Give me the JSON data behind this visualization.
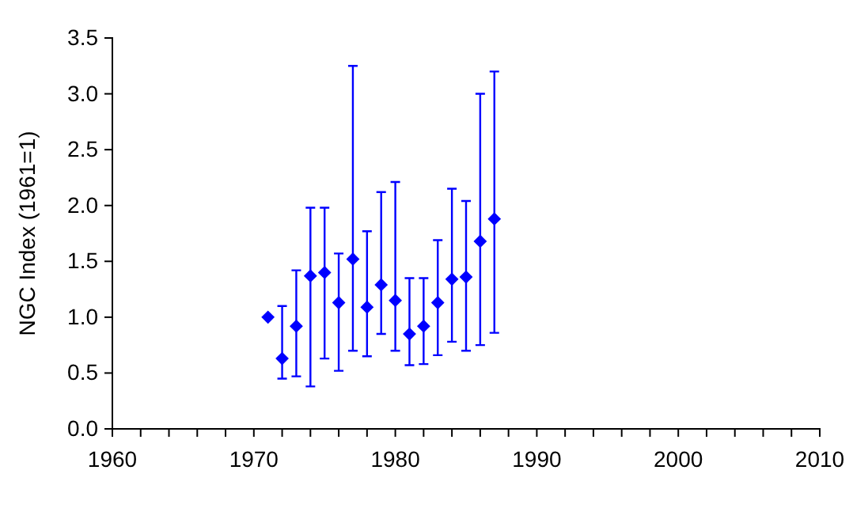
{
  "chart_data": {
    "type": "scatter",
    "ylabel": "NGC Index (1961=1)",
    "marker": "diamond",
    "x": [
      1971,
      1972,
      1973,
      1974,
      1975,
      1976,
      1977,
      1978,
      1979,
      1980,
      1981,
      1982,
      1983,
      1984,
      1985,
      1986,
      1987
    ],
    "series": [
      {
        "color": "#0000ff",
        "values": [
          1.0,
          0.63,
          0.92,
          1.37,
          1.4,
          1.13,
          1.52,
          1.09,
          1.29,
          1.15,
          0.85,
          0.92,
          1.13,
          1.34,
          1.36,
          1.68,
          1.88
        ],
        "errors": [
          null,
          [
            0.45,
            1.1
          ],
          [
            0.47,
            1.42
          ],
          [
            0.38,
            1.98
          ],
          [
            0.63,
            1.98
          ],
          [
            0.52,
            1.57
          ],
          [
            0.7,
            3.25
          ],
          [
            0.65,
            1.77
          ],
          [
            0.85,
            2.12
          ],
          [
            0.7,
            2.21
          ],
          [
            0.57,
            1.35
          ],
          [
            0.58,
            1.35
          ],
          [
            0.66,
            1.69
          ],
          [
            0.78,
            2.15
          ],
          [
            0.7,
            2.04
          ],
          [
            0.75,
            3.0
          ],
          [
            0.86,
            3.2
          ]
        ]
      }
    ],
    "xlim": [
      1960,
      2010
    ],
    "xticks": [
      1960,
      {
        "value": 1962,
        "label": null
      },
      {
        "value": 1964,
        "label": null
      },
      {
        "value": 1966,
        "label": null
      },
      {
        "value": 1968,
        "label": null
      },
      1970,
      {
        "value": 1972,
        "label": null
      },
      {
        "value": 1974,
        "label": null
      },
      {
        "value": 1976,
        "label": null
      },
      {
        "value": 1978,
        "label": null
      },
      1980,
      {
        "value": 1982,
        "label": null
      },
      {
        "value": 1984,
        "label": null
      },
      {
        "value": 1986,
        "label": null
      },
      {
        "value": 1988,
        "label": null
      },
      1990,
      {
        "value": 1992,
        "label": null
      },
      {
        "value": 1994,
        "label": null
      },
      {
        "value": 1996,
        "label": null
      },
      {
        "value": 1998,
        "label": null
      },
      2000,
      {
        "value": 2002,
        "label": null
      },
      {
        "value": 2004,
        "label": null
      },
      {
        "value": 2006,
        "label": null
      },
      {
        "value": 2008,
        "label": null
      },
      2010
    ],
    "ylim": [
      0,
      3.5
    ],
    "yticks": [
      {
        "value": 0,
        "label": "0.0"
      },
      {
        "value": 0.5,
        "label": "0.5"
      },
      {
        "value": 1,
        "label": "1.0"
      },
      {
        "value": 1.5,
        "label": "1.5"
      },
      {
        "value": 2,
        "label": "2.0"
      },
      {
        "value": 2.5,
        "label": "2.5"
      },
      {
        "value": 3,
        "label": "3.0"
      },
      {
        "value": 3.5,
        "label": "3.5"
      }
    ]
  }
}
